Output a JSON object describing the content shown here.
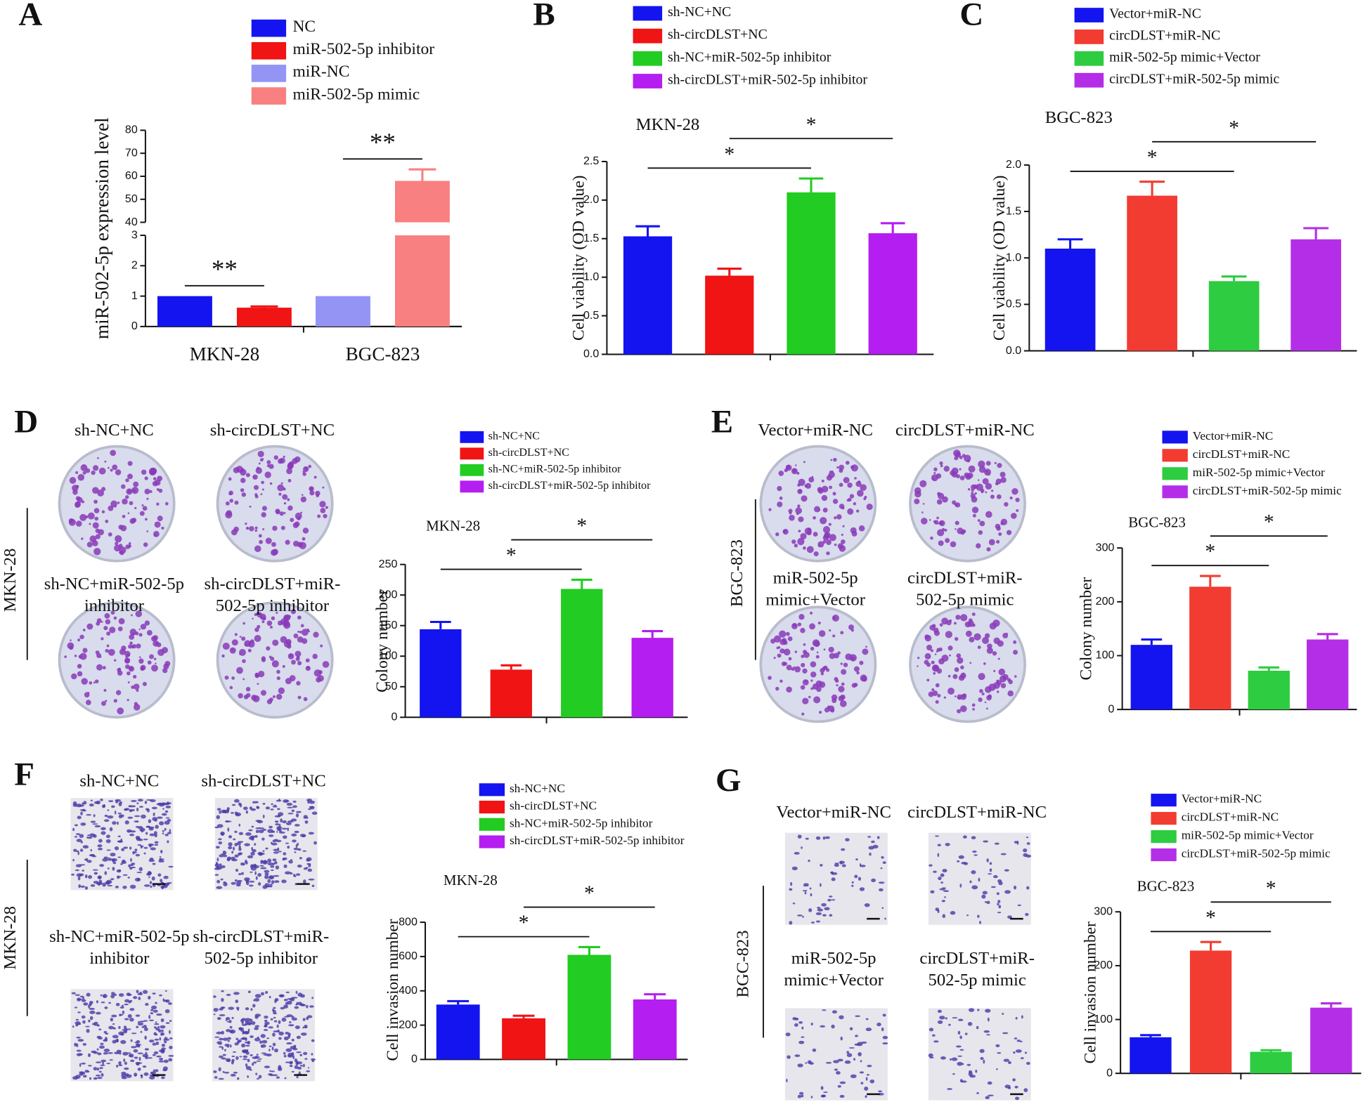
{
  "panel_letters": [
    "A",
    "B",
    "C",
    "D",
    "E",
    "F",
    "G"
  ],
  "images": [
    {
      "side_label": "MKN-28",
      "captions": [
        [
          "sh-NC+NC"
        ],
        [
          "sh-circDLST+NC"
        ],
        [
          "sh-NC+miR-502-5p",
          "inhibitor"
        ],
        [
          "sh-circDLST+miR-",
          "502-5p inhibitor"
        ]
      ]
    },
    {
      "side_label": "BGC-823",
      "captions": [
        [
          "Vector+miR-NC"
        ],
        [
          "circDLST+miR-NC"
        ],
        [
          "miR-502-5p",
          "mimic+Vector"
        ],
        [
          "circDLST+miR-",
          "502-5p mimic"
        ]
      ]
    },
    {
      "side_label": "MKN-28",
      "captions": [
        [
          "sh-NC+NC"
        ],
        [
          "sh-circDLST+NC"
        ],
        [
          "sh-NC+miR-502-5p",
          "inhibitor"
        ],
        [
          "sh-circDLST+miR-",
          "502-5p inhibitor"
        ]
      ]
    },
    {
      "side_label": "BGC-823",
      "captions": [
        [
          "Vector+miR-NC"
        ],
        [
          "circDLST+miR-NC"
        ],
        [
          "miR-502-5p",
          "mimic+Vector"
        ],
        [
          "circDLST+miR-",
          "502-5p mimic"
        ]
      ]
    }
  ],
  "chart_data": [
    {
      "type": "bar",
      "y_label": "miR-502-5p expression level",
      "categories": [
        "MKN-28",
        "BGC-823"
      ],
      "series": [
        {
          "name": "NC",
          "color": "#1414f0",
          "values": [
            1,
            null
          ]
        },
        {
          "name": "miR-502-5p inhibitor",
          "color": "#f01414",
          "values": [
            0.62,
            null
          ],
          "errors": [
            0.04,
            null
          ]
        },
        {
          "name": "miR-NC",
          "color": "#9494f4",
          "values": [
            null,
            1
          ]
        },
        {
          "name": "miR-502-5p mimic",
          "color": "#f88080",
          "values": [
            null,
            58
          ],
          "errors": [
            null,
            5
          ]
        }
      ],
      "ylim": [
        0,
        80
      ],
      "axis_break": [
        3,
        40
      ],
      "yticks": [
        0,
        1,
        2,
        3,
        40,
        50,
        60,
        70,
        80
      ],
      "annotations": [
        {
          "text": "**",
          "span_series": [
            0,
            1
          ]
        },
        {
          "text": "**",
          "span_series": [
            2,
            3
          ]
        }
      ]
    },
    {
      "type": "bar",
      "title": "MKN-28",
      "y_label": "Cell viability (OD value)",
      "categories": [
        null
      ],
      "series": [
        {
          "name": "sh-NC+NC",
          "color": "#1414f0",
          "values": [
            1.53
          ],
          "errors": [
            0.13
          ]
        },
        {
          "name": "sh-circDLST+NC",
          "color": "#f01414",
          "values": [
            1.02
          ],
          "errors": [
            0.09
          ]
        },
        {
          "name": "sh-NC+miR-502-5p inhibitor",
          "color": "#22cc22",
          "values": [
            2.1
          ],
          "errors": [
            0.18
          ]
        },
        {
          "name": "sh-circDLST+miR-502-5p inhibitor",
          "color": "#b41ef0",
          "values": [
            1.57
          ],
          "errors": [
            0.13
          ]
        }
      ],
      "ylim": [
        0,
        2.5
      ],
      "yticks": [
        {
          "value": 0,
          "label": "0.0"
        },
        0.5,
        {
          "value": 1,
          "label": "1.0"
        },
        1.5,
        {
          "value": 2,
          "label": "2.0"
        },
        2.5
      ],
      "annotations": [
        {
          "text": "*",
          "span_series": [
            0,
            2
          ]
        },
        {
          "text": "*",
          "span_series": [
            1,
            3
          ]
        }
      ]
    },
    {
      "type": "bar",
      "title": "BGC-823",
      "y_label": "Cell viability (OD value)",
      "categories": [
        null
      ],
      "series": [
        {
          "name": "Vector+miR-NC",
          "color": "#1414f0",
          "values": [
            1.1
          ],
          "errors": [
            0.1
          ]
        },
        {
          "name": "circDLST+miR-NC",
          "color": "#f23c32",
          "values": [
            1.67
          ],
          "errors": [
            0.15
          ]
        },
        {
          "name": "miR-502-5p mimic+Vector",
          "color": "#2ecc40",
          "values": [
            0.75
          ],
          "errors": [
            0.05
          ]
        },
        {
          "name": "circDLST+miR-502-5p mimic",
          "color": "#b42ee8",
          "values": [
            1.2
          ],
          "errors": [
            0.12
          ]
        }
      ],
      "ylim": [
        0,
        2
      ],
      "yticks": [
        {
          "value": 0,
          "label": "0.0"
        },
        0.5,
        {
          "value": 1,
          "label": "1.0"
        },
        1.5,
        {
          "value": 2,
          "label": "2.0"
        }
      ],
      "annotations": [
        {
          "text": "*",
          "span_series": [
            0,
            2
          ]
        },
        {
          "text": "*",
          "span_series": [
            1,
            3
          ]
        }
      ]
    },
    {
      "type": "bar",
      "title": "MKN-28",
      "y_label": "Colony number",
      "categories": [
        null
      ],
      "series": [
        {
          "name": "sh-NC+NC",
          "color": "#1414f0",
          "values": [
            144
          ],
          "errors": [
            12
          ]
        },
        {
          "name": "sh-circDLST+NC",
          "color": "#f01414",
          "values": [
            78
          ],
          "errors": [
            7
          ]
        },
        {
          "name": "sh-NC+miR-502-5p inhibitor",
          "color": "#22cc22",
          "values": [
            210
          ],
          "errors": [
            15
          ]
        },
        {
          "name": "sh-circDLST+miR-502-5p inhibitor",
          "color": "#b41ef0",
          "values": [
            130
          ],
          "errors": [
            11
          ]
        }
      ],
      "ylim": [
        0,
        250
      ],
      "yticks": [
        0,
        50,
        100,
        150,
        200,
        250
      ],
      "annotations": [
        {
          "text": "*",
          "span_series": [
            0,
            2
          ]
        },
        {
          "text": "*",
          "span_series": [
            1,
            3
          ]
        }
      ]
    },
    {
      "type": "bar",
      "title": "BGC-823",
      "y_label": "Colony number",
      "categories": [
        null
      ],
      "series": [
        {
          "name": "Vector+miR-NC",
          "color": "#1414f0",
          "values": [
            120
          ],
          "errors": [
            10
          ]
        },
        {
          "name": "circDLST+miR-NC",
          "color": "#f23c32",
          "values": [
            228
          ],
          "errors": [
            20
          ]
        },
        {
          "name": "miR-502-5p mimic+Vector",
          "color": "#2ecc40",
          "values": [
            72
          ],
          "errors": [
            6
          ]
        },
        {
          "name": "circDLST+miR-502-5p mimic",
          "color": "#b42ee8",
          "values": [
            130
          ],
          "errors": [
            10
          ]
        }
      ],
      "ylim": [
        0,
        300
      ],
      "yticks": [
        0,
        100,
        200,
        300
      ],
      "annotations": [
        {
          "text": "*",
          "span_series": [
            0,
            2
          ]
        },
        {
          "text": "*",
          "span_series": [
            1,
            3
          ]
        }
      ]
    },
    {
      "type": "bar",
      "title": "MKN-28",
      "y_label": "Cell invasion number",
      "categories": [
        null
      ],
      "series": [
        {
          "name": "sh-NC+NC",
          "color": "#1414f0",
          "values": [
            320
          ],
          "errors": [
            20
          ]
        },
        {
          "name": "sh-circDLST+NC",
          "color": "#f01414",
          "values": [
            240
          ],
          "errors": [
            15
          ]
        },
        {
          "name": "sh-NC+miR-502-5p inhibitor",
          "color": "#22cc22",
          "values": [
            610
          ],
          "errors": [
            45
          ]
        },
        {
          "name": "sh-circDLST+miR-502-5p inhibitor",
          "color": "#b41ef0",
          "values": [
            350
          ],
          "errors": [
            30
          ]
        }
      ],
      "ylim": [
        0,
        800
      ],
      "yticks": [
        0,
        200,
        400,
        600,
        800
      ],
      "annotations": [
        {
          "text": "*",
          "span_series": [
            0,
            2
          ]
        },
        {
          "text": "*",
          "span_series": [
            1,
            3
          ]
        }
      ]
    },
    {
      "type": "bar",
      "title": "BGC-823",
      "y_label": "Cell invasion number",
      "categories": [
        null
      ],
      "series": [
        {
          "name": "Vector+miR-NC",
          "color": "#1414f0",
          "values": [
            67
          ],
          "errors": [
            4
          ]
        },
        {
          "name": "circDLST+miR-NC",
          "color": "#f23c32",
          "values": [
            228
          ],
          "errors": [
            16
          ]
        },
        {
          "name": "miR-502-5p mimic+Vector",
          "color": "#2ecc40",
          "values": [
            40
          ],
          "errors": [
            3
          ]
        },
        {
          "name": "circDLST+miR-502-5p mimic",
          "color": "#b42ee8",
          "values": [
            122
          ],
          "errors": [
            8
          ]
        }
      ],
      "ylim": [
        0,
        300
      ],
      "yticks": [
        0,
        100,
        200,
        300
      ],
      "annotations": [
        {
          "text": "*",
          "span_series": [
            0,
            2
          ]
        },
        {
          "text": "*",
          "span_series": [
            1,
            3
          ]
        }
      ]
    }
  ]
}
